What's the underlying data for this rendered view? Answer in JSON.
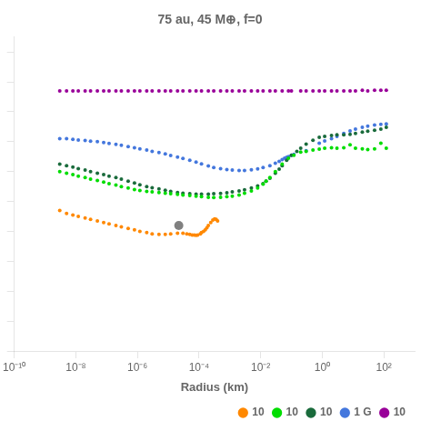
{
  "chart_data": {
    "type": "scatter",
    "title": "75 au, 45 M⊕, f=0",
    "x_label": "Radius (km)",
    "log": "x",
    "xlim": [
      1e-10,
      1000.0
    ],
    "xticks": [
      {
        "value": 1e-10,
        "label": "10⁻¹⁰"
      },
      {
        "value": 1e-08,
        "label": "10⁻⁸"
      },
      {
        "value": 1e-06,
        "label": "10⁻⁶"
      },
      {
        "value": 0.0001,
        "label": "10⁻⁴"
      },
      {
        "value": 0.01,
        "label": "10⁻²"
      },
      {
        "value": 1,
        "label": "10⁰"
      },
      {
        "value": 100,
        "label": "10²"
      }
    ],
    "ylim": [
      0,
      1.05
    ],
    "yticks": [
      0,
      0.1,
      0.2,
      0.3,
      0.4,
      0.5,
      0.6,
      0.7,
      0.8,
      0.9,
      1
    ],
    "tick_labels": "x",
    "grid": false,
    "legend": "lower right",
    "series": [
      {
        "name": "10",
        "color": "#ff8800",
        "values": [
          [
            3e-09,
            0.47
          ],
          [
            5e-09,
            0.46
          ],
          [
            8e-09,
            0.455
          ],
          [
            1.2e-08,
            0.45
          ],
          [
            2e-08,
            0.445
          ],
          [
            3e-08,
            0.44
          ],
          [
            5e-08,
            0.435
          ],
          [
            8e-08,
            0.43
          ],
          [
            1.2e-07,
            0.425
          ],
          [
            2e-07,
            0.42
          ],
          [
            3e-07,
            0.415
          ],
          [
            5e-07,
            0.41
          ],
          [
            8e-07,
            0.405
          ],
          [
            1.2e-06,
            0.4
          ],
          [
            2e-06,
            0.396
          ],
          [
            3e-06,
            0.392
          ],
          [
            5e-06,
            0.39
          ],
          [
            8e-06,
            0.39
          ],
          [
            1.2e-05,
            0.392
          ],
          [
            2e-05,
            0.394
          ],
          [
            3e-05,
            0.394
          ],
          [
            4e-05,
            0.392
          ],
          [
            5e-05,
            0.39
          ],
          [
            6e-05,
            0.388
          ],
          [
            7e-05,
            0.388
          ],
          [
            8e-05,
            0.387
          ],
          [
            9e-05,
            0.388
          ],
          [
            0.00011,
            0.392
          ],
          [
            0.00012,
            0.396
          ],
          [
            0.00014,
            0.4
          ],
          [
            0.00016,
            0.405
          ],
          [
            0.00018,
            0.412
          ],
          [
            0.0002,
            0.42
          ],
          [
            0.00024,
            0.43
          ],
          [
            0.00028,
            0.438
          ],
          [
            0.00032,
            0.442
          ],
          [
            0.00036,
            0.44
          ],
          [
            0.0004,
            0.435
          ]
        ]
      },
      {
        "name": "10",
        "color": "#00dd00",
        "values": [
          [
            3e-09,
            0.6
          ],
          [
            5e-09,
            0.595
          ],
          [
            8e-09,
            0.59
          ],
          [
            1.2e-08,
            0.585
          ],
          [
            2e-08,
            0.58
          ],
          [
            3e-08,
            0.575
          ],
          [
            5e-08,
            0.57
          ],
          [
            8e-08,
            0.565
          ],
          [
            1.2e-07,
            0.56
          ],
          [
            2e-07,
            0.555
          ],
          [
            3e-07,
            0.55
          ],
          [
            5e-07,
            0.545
          ],
          [
            8e-07,
            0.54
          ],
          [
            1.2e-06,
            0.537
          ],
          [
            2e-06,
            0.534
          ],
          [
            3e-06,
            0.532
          ],
          [
            5e-06,
            0.53
          ],
          [
            8e-06,
            0.528
          ],
          [
            1.2e-05,
            0.526
          ],
          [
            2e-05,
            0.524
          ],
          [
            3e-05,
            0.522
          ],
          [
            5e-05,
            0.52
          ],
          [
            8e-05,
            0.518
          ],
          [
            0.00012,
            0.516
          ],
          [
            0.0002,
            0.514
          ],
          [
            0.0003,
            0.513
          ],
          [
            0.0005,
            0.514
          ],
          [
            0.0008,
            0.516
          ],
          [
            0.0012,
            0.518
          ],
          [
            0.002,
            0.522
          ],
          [
            0.003,
            0.528
          ],
          [
            0.005,
            0.535
          ],
          [
            0.008,
            0.545
          ],
          [
            0.012,
            0.558
          ],
          [
            0.015,
            0.568
          ],
          [
            0.02,
            0.58
          ],
          [
            0.03,
            0.6
          ],
          [
            0.05,
            0.625
          ],
          [
            0.08,
            0.645
          ],
          [
            0.12,
            0.655
          ],
          [
            0.2,
            0.665
          ],
          [
            0.3,
            0.668
          ],
          [
            0.5,
            0.672
          ],
          [
            0.8,
            0.675
          ],
          [
            1.2,
            0.678
          ],
          [
            2.0,
            0.68
          ],
          [
            3.0,
            0.678
          ],
          [
            5.0,
            0.68
          ],
          [
            8.0,
            0.69
          ],
          [
            12.0,
            0.678
          ],
          [
            20.0,
            0.676
          ],
          [
            30.0,
            0.674
          ],
          [
            50.0,
            0.676
          ],
          [
            80.0,
            0.695
          ],
          [
            120.0,
            0.678
          ]
        ]
      },
      {
        "name": "10",
        "color": "#1a6b3c",
        "values": [
          [
            3e-09,
            0.625
          ],
          [
            5e-09,
            0.62
          ],
          [
            8e-09,
            0.615
          ],
          [
            1.2e-08,
            0.61
          ],
          [
            2e-08,
            0.605
          ],
          [
            3e-08,
            0.6
          ],
          [
            5e-08,
            0.595
          ],
          [
            8e-08,
            0.59
          ],
          [
            1.2e-07,
            0.585
          ],
          [
            2e-07,
            0.58
          ],
          [
            3e-07,
            0.575
          ],
          [
            5e-07,
            0.568
          ],
          [
            8e-07,
            0.562
          ],
          [
            1.2e-06,
            0.556
          ],
          [
            2e-06,
            0.55
          ],
          [
            3e-06,
            0.546
          ],
          [
            5e-06,
            0.542
          ],
          [
            8e-06,
            0.538
          ],
          [
            1.2e-05,
            0.534
          ],
          [
            2e-05,
            0.53
          ],
          [
            3e-05,
            0.528
          ],
          [
            5e-05,
            0.526
          ],
          [
            8e-05,
            0.525
          ],
          [
            0.00012,
            0.525
          ],
          [
            0.0002,
            0.525
          ],
          [
            0.0003,
            0.526
          ],
          [
            0.0005,
            0.527
          ],
          [
            0.0008,
            0.529
          ],
          [
            0.0012,
            0.532
          ],
          [
            0.002,
            0.535
          ],
          [
            0.003,
            0.539
          ],
          [
            0.005,
            0.545
          ],
          [
            0.008,
            0.552
          ],
          [
            0.012,
            0.56
          ],
          [
            0.015,
            0.568
          ],
          [
            0.02,
            0.578
          ],
          [
            0.03,
            0.595
          ],
          [
            0.04,
            0.608
          ],
          [
            0.05,
            0.62
          ],
          [
            0.07,
            0.638
          ],
          [
            0.1,
            0.655
          ],
          [
            0.15,
            0.668
          ],
          [
            0.2,
            0.678
          ],
          [
            0.3,
            0.692
          ],
          [
            0.5,
            0.705
          ],
          [
            0.8,
            0.715
          ],
          [
            1.2,
            0.718
          ],
          [
            2.0,
            0.721
          ],
          [
            3.0,
            0.723
          ],
          [
            5.0,
            0.723
          ],
          [
            8.0,
            0.725
          ],
          [
            12.0,
            0.728
          ],
          [
            20.0,
            0.732
          ],
          [
            30.0,
            0.735
          ],
          [
            50.0,
            0.738
          ],
          [
            80.0,
            0.742
          ],
          [
            120.0,
            0.748
          ]
        ]
      },
      {
        "name": "1 G",
        "color": "#4477dd",
        "values": [
          [
            3e-09,
            0.71
          ],
          [
            5e-09,
            0.71
          ],
          [
            8e-09,
            0.708
          ],
          [
            1.2e-08,
            0.706
          ],
          [
            2e-08,
            0.704
          ],
          [
            3e-08,
            0.702
          ],
          [
            5e-08,
            0.7
          ],
          [
            8e-08,
            0.697
          ],
          [
            1.2e-07,
            0.694
          ],
          [
            2e-07,
            0.691
          ],
          [
            3e-07,
            0.688
          ],
          [
            5e-07,
            0.684
          ],
          [
            8e-07,
            0.68
          ],
          [
            1.2e-06,
            0.676
          ],
          [
            2e-06,
            0.672
          ],
          [
            3e-06,
            0.668
          ],
          [
            5e-06,
            0.664
          ],
          [
            8e-06,
            0.659
          ],
          [
            1.2e-05,
            0.654
          ],
          [
            2e-05,
            0.649
          ],
          [
            3e-05,
            0.644
          ],
          [
            5e-05,
            0.638
          ],
          [
            8e-05,
            0.632
          ],
          [
            0.00012,
            0.626
          ],
          [
            0.0002,
            0.619
          ],
          [
            0.0003,
            0.614
          ],
          [
            0.0005,
            0.61
          ],
          [
            0.0008,
            0.607
          ],
          [
            0.0012,
            0.605
          ],
          [
            0.002,
            0.604
          ],
          [
            0.003,
            0.604
          ],
          [
            0.005,
            0.606
          ],
          [
            0.008,
            0.609
          ],
          [
            0.012,
            0.614
          ],
          [
            0.02,
            0.62
          ],
          [
            0.03,
            0.628
          ],
          [
            0.04,
            0.634
          ],
          [
            0.05,
            0.64
          ],
          [
            0.06,
            0.645
          ],
          [
            0.07,
            0.648
          ],
          [
            0.08,
            0.65
          ],
          [
            0.1,
            0.655
          ],
          [
            0.12,
            0.658
          ],
          [
            0.3,
            0.67
          ],
          [
            0.8,
            0.695
          ],
          [
            1.2,
            0.703
          ],
          [
            2.0,
            0.71
          ],
          [
            3.0,
            0.718
          ],
          [
            5.0,
            0.728
          ],
          [
            8.0,
            0.736
          ],
          [
            12.0,
            0.742
          ],
          [
            20.0,
            0.748
          ],
          [
            30.0,
            0.752
          ],
          [
            50.0,
            0.756
          ],
          [
            80.0,
            0.758
          ],
          [
            120.0,
            0.76
          ]
        ]
      },
      {
        "name": "10",
        "color": "#990099",
        "values": [
          [
            3e-09,
            0.87
          ],
          [
            5e-09,
            0.87
          ],
          [
            8e-09,
            0.87
          ],
          [
            1.2e-08,
            0.87
          ],
          [
            2e-08,
            0.87
          ],
          [
            3e-08,
            0.87
          ],
          [
            5e-08,
            0.87
          ],
          [
            8e-08,
            0.87
          ],
          [
            1.2e-07,
            0.87
          ],
          [
            2e-07,
            0.87
          ],
          [
            3e-07,
            0.87
          ],
          [
            5e-07,
            0.87
          ],
          [
            8e-07,
            0.87
          ],
          [
            1.2e-06,
            0.87
          ],
          [
            2e-06,
            0.87
          ],
          [
            3e-06,
            0.87
          ],
          [
            5e-06,
            0.87
          ],
          [
            8e-06,
            0.87
          ],
          [
            1.2e-05,
            0.87
          ],
          [
            2e-05,
            0.87
          ],
          [
            3e-05,
            0.87
          ],
          [
            5e-05,
            0.87
          ],
          [
            8e-05,
            0.87
          ],
          [
            0.00012,
            0.87
          ],
          [
            0.0002,
            0.87
          ],
          [
            0.0003,
            0.87
          ],
          [
            0.0005,
            0.87
          ],
          [
            0.0008,
            0.87
          ],
          [
            0.0012,
            0.87
          ],
          [
            0.002,
            0.87
          ],
          [
            0.003,
            0.87
          ],
          [
            0.005,
            0.87
          ],
          [
            0.008,
            0.87
          ],
          [
            0.012,
            0.87
          ],
          [
            0.02,
            0.87
          ],
          [
            0.03,
            0.87
          ],
          [
            0.05,
            0.87
          ],
          [
            0.08,
            0.87
          ],
          [
            0.1,
            0.87
          ],
          [
            0.2,
            0.87
          ],
          [
            0.3,
            0.87
          ],
          [
            0.5,
            0.87
          ],
          [
            0.8,
            0.87
          ],
          [
            1.2,
            0.87
          ],
          [
            2.0,
            0.87
          ],
          [
            3.0,
            0.87
          ],
          [
            5.0,
            0.87
          ],
          [
            8.0,
            0.87
          ],
          [
            12.0,
            0.87
          ],
          [
            20.0,
            0.872
          ],
          [
            30.0,
            0.87
          ],
          [
            50.0,
            0.872
          ],
          [
            80.0,
            0.872
          ],
          [
            120.0,
            0.872
          ]
        ]
      },
      {
        "color": "gray",
        "marker": "large",
        "values": [
          [
            2.2e-05,
            0.42
          ]
        ]
      }
    ]
  }
}
